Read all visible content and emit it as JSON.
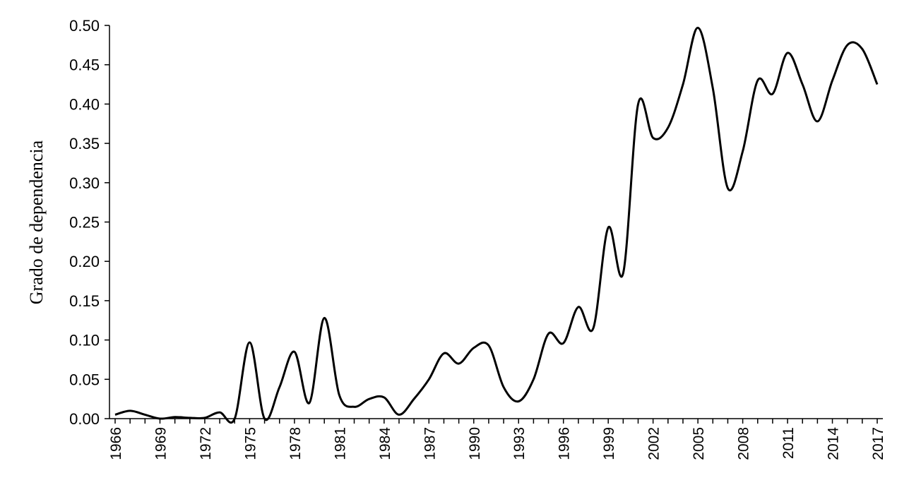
{
  "chart_data": {
    "type": "line",
    "title": "",
    "xlabel": "",
    "ylabel": "Grado de dependencia",
    "xlim": [
      1966,
      2017
    ],
    "ylim": [
      0,
      0.5
    ],
    "grid": false,
    "legend": "none",
    "line_color": "#000000",
    "y_ticks": [
      "0.00",
      "0.05",
      "0.10",
      "0.15",
      "0.20",
      "0.25",
      "0.30",
      "0.35",
      "0.40",
      "0.45",
      "0.50"
    ],
    "x_ticks": [
      "1966",
      "1969",
      "1972",
      "1975",
      "1978",
      "1981",
      "1984",
      "1987",
      "1990",
      "1993",
      "1996",
      "1999",
      "2002",
      "2005",
      "2008",
      "2011",
      "2014",
      "2017"
    ],
    "series": [
      {
        "x": [
          1966,
          1967,
          1968,
          1969,
          1970,
          1971,
          1972,
          1973,
          1974,
          1975,
          1976,
          1977,
          1978,
          1979,
          1980,
          1981,
          1982,
          1983,
          1984,
          1985,
          1986,
          1987,
          1988,
          1989,
          1990,
          1991,
          1992,
          1993,
          1994,
          1995,
          1996,
          1997,
          1998,
          1999,
          2000,
          2001,
          2002,
          2003,
          2004,
          2005,
          2006,
          2007,
          2008,
          2009,
          2010,
          2011,
          2012,
          2013,
          2014,
          2015,
          2016,
          2017
        ],
        "values": [
          0.005,
          0.01,
          0.005,
          0.0,
          0.002,
          0.001,
          0.001,
          0.008,
          0.0,
          0.097,
          0.0,
          0.04,
          0.085,
          0.02,
          0.128,
          0.03,
          0.015,
          0.025,
          0.027,
          0.005,
          0.025,
          0.05,
          0.083,
          0.07,
          0.09,
          0.093,
          0.04,
          0.022,
          0.05,
          0.108,
          0.096,
          0.142,
          0.115,
          0.243,
          0.185,
          0.4,
          0.357,
          0.37,
          0.425,
          0.497,
          0.42,
          0.293,
          0.34,
          0.43,
          0.413,
          0.465,
          0.425,
          0.378,
          0.43,
          0.475,
          0.47,
          0.425
        ]
      }
    ]
  }
}
